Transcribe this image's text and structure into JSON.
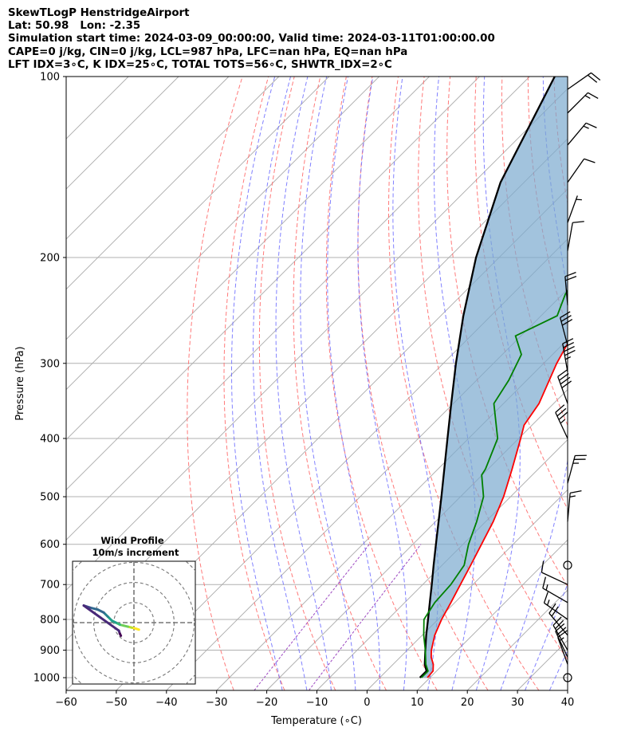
{
  "title_lines": [
    "SkewTLogP HenstridgeAirport",
    "Lat: 50.98   Lon: -2.35",
    "Simulation start time: 2024-03-09_00:00:00, Valid time: 2024-03-11T01:00:00.00",
    "CAPE=0 j/kg, CIN=0 j/kg, LCL=987 hPa, LFC=nan hPa, EQ=nan hPa",
    "LFT IDX=3∘C, K IDX=25∘C, TOTAL TOTS=56∘C, SHWTR_IDX=2∘C"
  ],
  "chart_data": {
    "type": "skew-t log-p",
    "xlabel": "Temperature (∘C)",
    "ylabel": "Pressure (hPa)",
    "xlim": [
      -60,
      40
    ],
    "ylim": [
      1050,
      100
    ],
    "x_ticks": [
      -60,
      -50,
      -40,
      -30,
      -20,
      -10,
      0,
      10,
      20,
      30,
      40
    ],
    "y_ticks": [
      100,
      200,
      300,
      400,
      500,
      600,
      700,
      800,
      900,
      1000
    ],
    "y_scale": "log",
    "grid": true,
    "colors": {
      "temperature": "#ff0000",
      "dewpoint": "#008000",
      "parcel": "#000000",
      "cin_fill": "#7aa9cf",
      "dry_adiabats": "#ff6b6b",
      "moist_adiabats": "#6b6bff",
      "mixing_ratio": "#9c47c0",
      "isotherms": "#aaaaaa"
    },
    "temperature_profile": [
      [
        1000,
        9.5
      ],
      [
        975,
        9.3
      ],
      [
        950,
        8.0
      ],
      [
        925,
        6.2
      ],
      [
        900,
        4.8
      ],
      [
        850,
        2.5
      ],
      [
        800,
        0.7
      ],
      [
        750,
        -0.8
      ],
      [
        700,
        -2.5
      ],
      [
        650,
        -4.3
      ],
      [
        600,
        -6.3
      ],
      [
        550,
        -8.5
      ],
      [
        500,
        -11.4
      ],
      [
        450,
        -15.2
      ],
      [
        400,
        -19.6
      ],
      [
        380,
        -21.6
      ],
      [
        350,
        -22.9
      ],
      [
        300,
        -27.4
      ],
      [
        280,
        -29.0
      ],
      [
        250,
        -29.5
      ],
      [
        230,
        -29.7
      ],
      [
        200,
        -32.6
      ],
      [
        175,
        -35.5
      ],
      [
        150,
        -35.5
      ],
      [
        130,
        -36.8
      ],
      [
        115,
        -37.6
      ],
      [
        100,
        -37.9
      ]
    ],
    "dewpoint_profile": [
      [
        1000,
        8.3
      ],
      [
        975,
        8.3
      ],
      [
        950,
        6.5
      ],
      [
        900,
        3.6
      ],
      [
        850,
        0.3
      ],
      [
        800,
        -2.8
      ],
      [
        750,
        -4.0
      ],
      [
        700,
        -4.4
      ],
      [
        650,
        -5.6
      ],
      [
        600,
        -8.9
      ],
      [
        550,
        -11.8
      ],
      [
        500,
        -15.4
      ],
      [
        460,
        -20.1
      ],
      [
        450,
        -20.5
      ],
      [
        400,
        -24.2
      ],
      [
        350,
        -31.9
      ],
      [
        320,
        -33.6
      ],
      [
        290,
        -36.2
      ],
      [
        270,
        -41.1
      ],
      [
        250,
        -36.8
      ],
      [
        230,
        -39.5
      ],
      [
        200,
        -42.0
      ],
      [
        180,
        -44.5
      ],
      [
        160,
        -43.5
      ],
      [
        130,
        -48.0
      ],
      [
        100,
        -52.0
      ]
    ],
    "parcel_profile": [
      [
        1000,
        8.0
      ],
      [
        975,
        8.0
      ],
      [
        950,
        6.3
      ],
      [
        900,
        3.6
      ],
      [
        850,
        0.8
      ],
      [
        800,
        -2.0
      ],
      [
        750,
        -5.0
      ],
      [
        700,
        -8.2
      ],
      [
        650,
        -11.7
      ],
      [
        600,
        -15.4
      ],
      [
        550,
        -19.4
      ],
      [
        500,
        -23.8
      ],
      [
        450,
        -28.7
      ],
      [
        400,
        -34.2
      ],
      [
        350,
        -40.4
      ],
      [
        300,
        -47.5
      ],
      [
        250,
        -55.5
      ],
      [
        200,
        -64.6
      ],
      [
        150,
        -74.7
      ],
      [
        100,
        -85.0
      ]
    ],
    "wind_barbs": [
      {
        "pressure": 1000,
        "calm": true
      },
      {
        "pressure": 950,
        "direction": 340,
        "speed_kt": 15
      },
      {
        "pressure": 925,
        "direction": 335,
        "speed_kt": 20
      },
      {
        "pressure": 900,
        "direction": 330,
        "speed_kt": 20
      },
      {
        "pressure": 850,
        "direction": 320,
        "speed_kt": 20
      },
      {
        "pressure": 800,
        "direction": 305,
        "speed_kt": 15
      },
      {
        "pressure": 750,
        "direction": 300,
        "speed_kt": 15
      },
      {
        "pressure": 700,
        "direction": 295,
        "speed_kt": 10
      },
      {
        "pressure": 650,
        "calm": true
      },
      {
        "pressure": 550,
        "direction": 5,
        "speed_kt": 15
      },
      {
        "pressure": 475,
        "direction": 15,
        "speed_kt": 25
      },
      {
        "pressure": 400,
        "direction": 335,
        "speed_kt": 35
      },
      {
        "pressure": 350,
        "direction": 340,
        "speed_kt": 40
      },
      {
        "pressure": 310,
        "direction": 350,
        "speed_kt": 45
      },
      {
        "pressure": 280,
        "direction": 345,
        "speed_kt": 30
      },
      {
        "pressure": 240,
        "direction": 355,
        "speed_kt": 20
      },
      {
        "pressure": 195,
        "direction": 10,
        "speed_kt": 10
      },
      {
        "pressure": 175,
        "direction": 20,
        "speed_kt": 5
      },
      {
        "pressure": 150,
        "direction": 35,
        "speed_kt": 10
      },
      {
        "pressure": 130,
        "direction": 40,
        "speed_kt": 15
      },
      {
        "pressure": 115,
        "direction": 45,
        "speed_kt": 15
      },
      {
        "pressure": 105,
        "direction": 55,
        "speed_kt": 20
      }
    ],
    "hodograph": {
      "title": "Wind Profile",
      "subtitle": "10m/s increment",
      "ring_interval_ms": 10,
      "points_uv": [
        [
          2.5,
          -3.5
        ],
        [
          1.0,
          -3.0
        ],
        [
          -1.0,
          -2.5
        ],
        [
          -3.0,
          -2.0
        ],
        [
          -5.0,
          -1.5
        ],
        [
          -7.0,
          -1.0
        ],
        [
          -9.0,
          0.0
        ],
        [
          -11.0,
          1.0
        ],
        [
          -13.0,
          3.0
        ],
        [
          -15.0,
          5.0
        ],
        [
          -18.0,
          6.5
        ],
        [
          -22.0,
          7.5
        ],
        [
          -25.0,
          8.5
        ],
        [
          -7.5,
          -4.0
        ],
        [
          -7.0,
          -5.5
        ],
        [
          -6.5,
          -6.5
        ]
      ]
    }
  }
}
